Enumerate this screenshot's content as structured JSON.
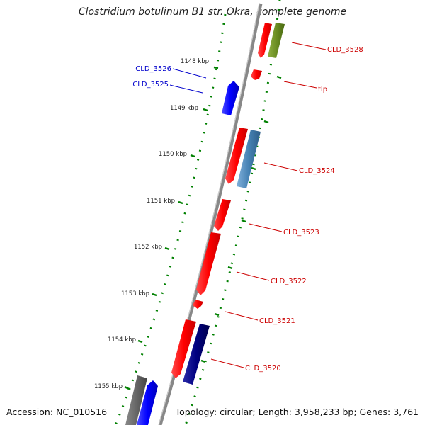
{
  "header": {
    "title": "Clostridium botulinum B1 str. Okra, complete genome"
  },
  "footer": {
    "accession": "Accession: NC_010516",
    "summary": "Topology: circular; Length: 3,958,233 bp; Genes: 3,761"
  },
  "ticks": [
    {
      "label": "1148 kbp"
    },
    {
      "label": "1149 kbp"
    },
    {
      "label": "1150 kbp"
    },
    {
      "label": "1151 kbp"
    },
    {
      "label": "1152 kbp"
    },
    {
      "label": "1153 kbp"
    },
    {
      "label": "1154 kbp"
    },
    {
      "label": "1155 kbp"
    }
  ],
  "genes": [
    {
      "label": "CLD_3528",
      "color": "#cc0000",
      "strand": "forward"
    },
    {
      "label": "tlp",
      "color": "#cc0000",
      "strand": "forward"
    },
    {
      "label": "CLD_3526",
      "color": "#0000cc",
      "strand": "reverse"
    },
    {
      "label": "CLD_3525",
      "color": "#0000cc",
      "strand": "reverse"
    },
    {
      "label": "CLD_3524",
      "color": "#cc0000",
      "strand": "forward"
    },
    {
      "label": "CLD_3523",
      "color": "#cc0000",
      "strand": "forward"
    },
    {
      "label": "CLD_3522",
      "color": "#cc0000",
      "strand": "forward"
    },
    {
      "label": "CLD_3521",
      "color": "#cc0000",
      "strand": "forward"
    },
    {
      "label": "CLD_3520",
      "color": "#cc0000",
      "strand": "forward"
    }
  ],
  "colors": {
    "forward_gene": "#ff0000",
    "reverse_gene": "#0000ff",
    "feature_green": "#6b8e23",
    "feature_steelblue": "#4682b4",
    "feature_navy": "#000080",
    "feature_gray": "#666666",
    "backbone": "#888888",
    "tick_green": "#008000",
    "label_red": "#cc0000",
    "label_blue": "#0000cc"
  }
}
